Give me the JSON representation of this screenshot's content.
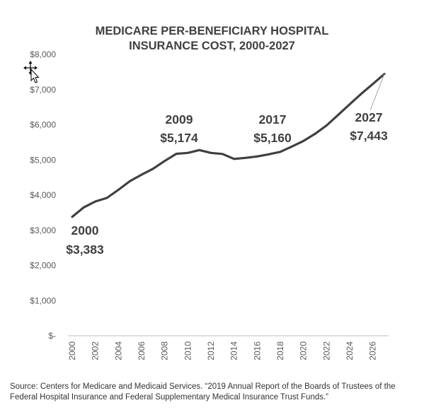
{
  "chart_data": {
    "type": "line",
    "title_lines": [
      "MEDICARE PER-BENEFICIARY HOSPITAL",
      "INSURANCE COST, 2000-2027"
    ],
    "x": [
      2000,
      2001,
      2002,
      2003,
      2004,
      2005,
      2006,
      2007,
      2008,
      2009,
      2010,
      2011,
      2012,
      2013,
      2014,
      2015,
      2016,
      2017,
      2018,
      2019,
      2020,
      2021,
      2022,
      2023,
      2024,
      2025,
      2026,
      2027
    ],
    "series": [
      {
        "values": [
          3383,
          3650,
          3820,
          3920,
          4150,
          4400,
          4580,
          4750,
          4970,
          5174,
          5200,
          5280,
          5200,
          5170,
          5030,
          5060,
          5100,
          5160,
          5230,
          5380,
          5540,
          5740,
          5980,
          6280,
          6580,
          6880,
          7160,
          7443
        ]
      }
    ],
    "ylim": [
      0,
      8000
    ],
    "yticks": [
      0,
      1000,
      2000,
      3000,
      4000,
      5000,
      6000,
      7000,
      8000
    ],
    "ytick_labels": [
      "$-",
      "$1,000",
      "$2,000",
      "$3,000",
      "$4,000",
      "$5,000",
      "$6,000",
      "$7,000",
      "$8,000"
    ],
    "xticks": [
      2000,
      2002,
      2004,
      2006,
      2008,
      2010,
      2012,
      2014,
      2016,
      2018,
      2020,
      2022,
      2024,
      2026
    ],
    "xtick_labels": [
      "2000",
      "2002",
      "2004",
      "2006",
      "2008",
      "2010",
      "2012",
      "2014",
      "2016",
      "2018",
      "2020",
      "2022",
      "2024",
      "2026"
    ],
    "annotations": [
      {
        "year_label": "2000",
        "value_label": "$3,383"
      },
      {
        "year_label": "2009",
        "value_label": "$5,174"
      },
      {
        "year_label": "2017",
        "value_label": "$5,160"
      },
      {
        "year_label": "2027",
        "value_label": "$7,443"
      }
    ],
    "line_color": "#404040",
    "grid": false,
    "legend": "none"
  },
  "source_note": "Source: Centers for Medicare and Medicaid Services. “2019 Annual Report of the Boards of Trustees of the Federal Hospital Insurance and Federal Supplementary Medical Insurance Trust Funds.”",
  "cursor": {
    "icon": "move-cursor-icon"
  }
}
